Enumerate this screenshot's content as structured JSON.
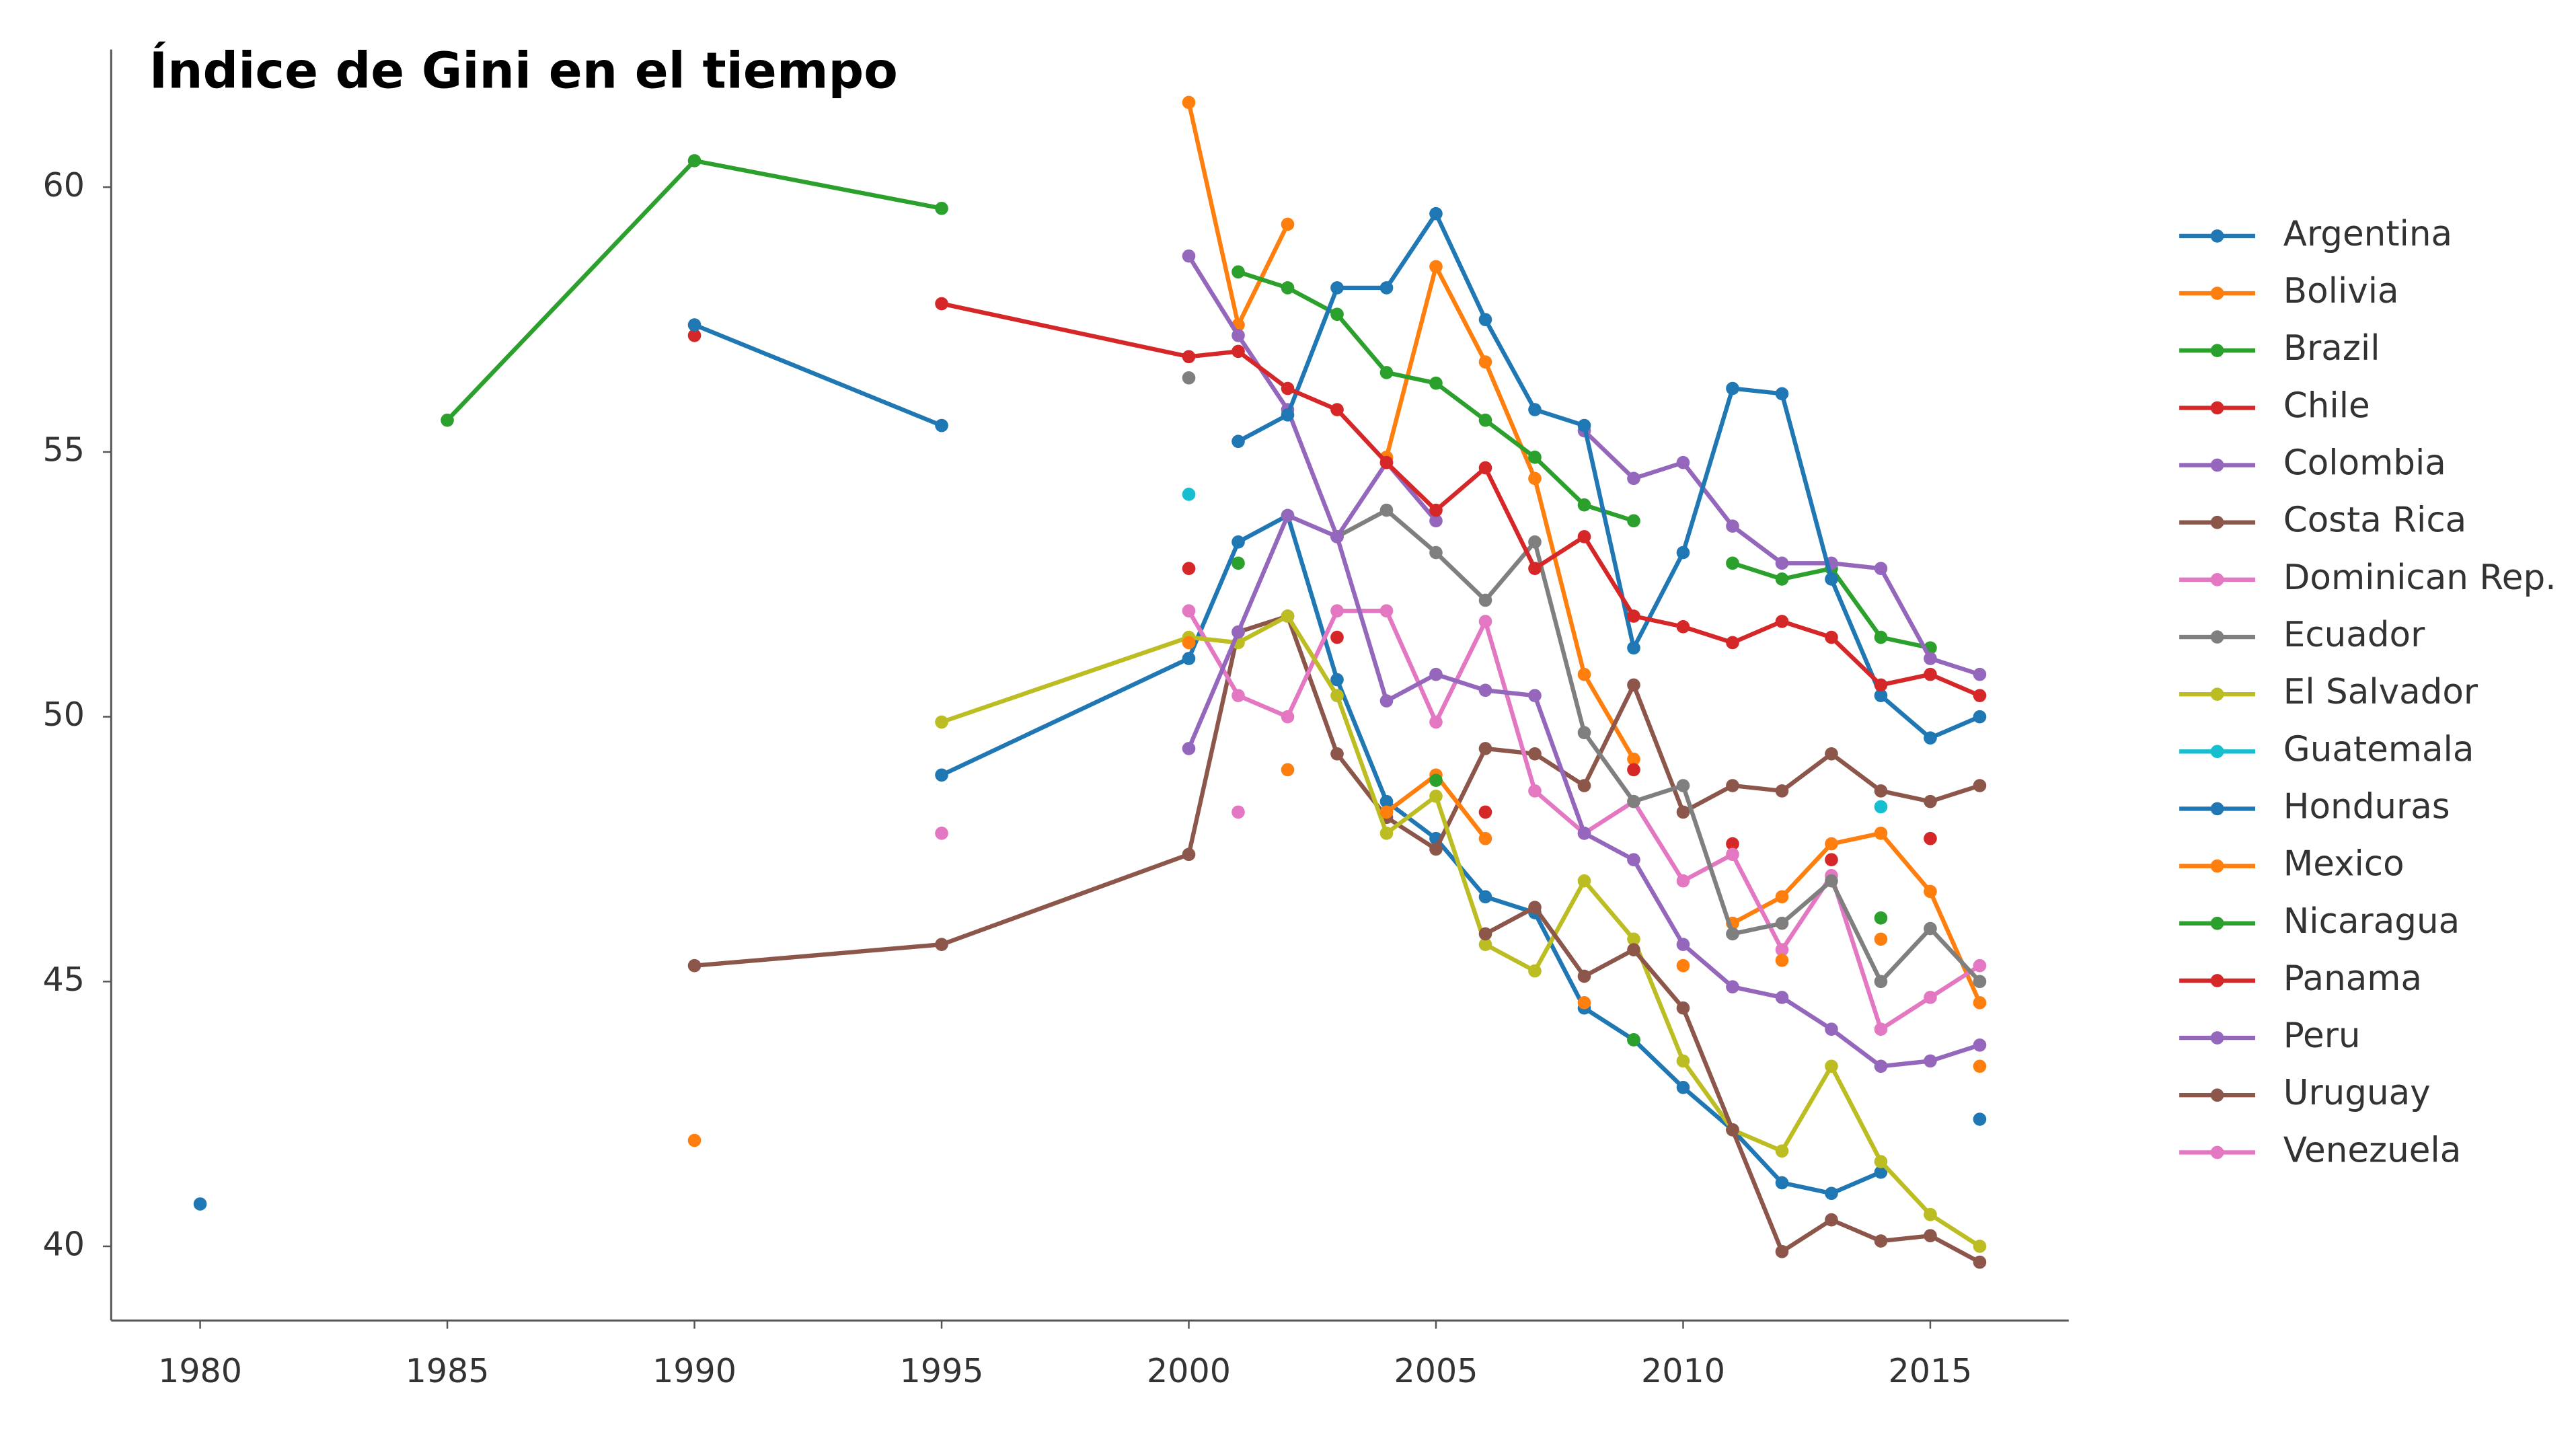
{
  "chart_data": {
    "type": "line",
    "title": "Índice de Gini en el tiempo",
    "x": [
      1980,
      1985,
      1990,
      1995,
      2000,
      2001,
      2002,
      2003,
      2004,
      2005,
      2006,
      2007,
      2008,
      2009,
      2010,
      2011,
      2012,
      2013,
      2014,
      2015,
      2016
    ],
    "xlim": [
      1978.2,
      2017.8
    ],
    "xticks": [
      1980,
      1985,
      1990,
      1995,
      2000,
      2005,
      2010,
      2015
    ],
    "ylim": [
      38.6,
      62.6
    ],
    "yticks": [
      40,
      45,
      50,
      55,
      60
    ],
    "legend": "right",
    "series": [
      {
        "name": "Argentina",
        "color": "#1f77b4",
        "values": [
          40.8,
          null,
          null,
          48.9,
          51.1,
          53.3,
          53.8,
          50.7,
          48.4,
          47.7,
          46.6,
          46.3,
          44.5,
          43.9,
          43.0,
          42.2,
          41.2,
          41.0,
          41.4,
          null,
          42.4
        ]
      },
      {
        "name": "Bolivia",
        "color": "#ff7f0e",
        "values": [
          null,
          null,
          42.0,
          null,
          61.6,
          57.4,
          59.3,
          null,
          54.9,
          58.5,
          56.7,
          54.5,
          50.8,
          49.2,
          null,
          46.1,
          46.6,
          47.6,
          47.8,
          46.7,
          44.6
        ]
      },
      {
        "name": "Brazil",
        "color": "#2ca02c",
        "values": [
          null,
          55.6,
          60.5,
          59.6,
          null,
          58.4,
          58.1,
          57.6,
          56.5,
          56.3,
          55.6,
          54.9,
          54.0,
          53.7,
          null,
          52.9,
          52.6,
          52.8,
          51.5,
          51.3,
          null
        ]
      },
      {
        "name": "Chile",
        "color": "#d62728",
        "values": [
          null,
          null,
          57.2,
          null,
          52.8,
          null,
          null,
          51.5,
          null,
          null,
          48.2,
          null,
          null,
          49.0,
          null,
          47.6,
          null,
          47.3,
          null,
          47.7,
          null
        ]
      },
      {
        "name": "Colombia",
        "color": "#9467bd",
        "values": [
          null,
          null,
          null,
          null,
          58.7,
          57.2,
          55.8,
          53.4,
          54.8,
          53.7,
          null,
          null,
          55.4,
          54.5,
          54.8,
          53.6,
          52.9,
          52.9,
          52.8,
          51.1,
          50.8
        ]
      },
      {
        "name": "Costa Rica",
        "color": "#8c564b",
        "values": [
          null,
          null,
          45.3,
          45.7,
          47.4,
          51.6,
          51.9,
          49.3,
          48.1,
          47.5,
          49.4,
          49.3,
          48.7,
          50.6,
          48.2,
          48.7,
          48.6,
          49.3,
          48.6,
          48.4,
          48.7
        ]
      },
      {
        "name": "Dominican Rep.",
        "color": "#e377c2",
        "values": [
          null,
          null,
          null,
          null,
          52.0,
          50.4,
          50.0,
          52.0,
          52.0,
          49.9,
          51.8,
          48.6,
          47.8,
          48.4,
          46.9,
          47.4,
          45.6,
          47.0,
          44.1,
          44.7,
          45.3
        ]
      },
      {
        "name": "Ecuador",
        "color": "#7f7f7f",
        "values": [
          null,
          null,
          null,
          null,
          56.4,
          null,
          null,
          53.4,
          53.9,
          53.1,
          52.2,
          53.3,
          49.7,
          48.4,
          48.7,
          45.9,
          46.1,
          46.9,
          45.0,
          46.0,
          45.0
        ]
      },
      {
        "name": "El Salvador",
        "color": "#bcbd22",
        "values": [
          null,
          null,
          null,
          49.9,
          51.5,
          51.4,
          51.9,
          50.4,
          47.8,
          48.5,
          45.7,
          45.2,
          46.9,
          45.8,
          43.5,
          42.2,
          41.8,
          43.4,
          41.6,
          40.6,
          40.0
        ]
      },
      {
        "name": "Guatemala",
        "color": "#17becf",
        "values": [
          null,
          null,
          null,
          null,
          54.2,
          null,
          null,
          null,
          null,
          null,
          null,
          null,
          null,
          null,
          null,
          null,
          null,
          null,
          48.3,
          null,
          null
        ]
      },
      {
        "name": "Honduras",
        "color": "#1f77b4",
        "values": [
          null,
          null,
          57.4,
          55.5,
          null,
          55.2,
          55.7,
          58.1,
          58.1,
          59.5,
          57.5,
          55.8,
          55.5,
          51.3,
          53.1,
          56.2,
          56.1,
          52.6,
          50.4,
          49.6,
          50.0
        ]
      },
      {
        "name": "Mexico",
        "color": "#ff7f0e",
        "values": [
          null,
          null,
          null,
          null,
          51.4,
          null,
          49.0,
          null,
          48.2,
          48.9,
          47.7,
          null,
          44.6,
          null,
          45.3,
          null,
          45.4,
          null,
          45.8,
          null,
          43.4
        ]
      },
      {
        "name": "Nicaragua",
        "color": "#2ca02c",
        "values": [
          null,
          null,
          null,
          null,
          null,
          52.9,
          null,
          null,
          null,
          48.8,
          null,
          null,
          null,
          43.9,
          null,
          null,
          null,
          null,
          46.2,
          null,
          null
        ]
      },
      {
        "name": "Panama",
        "color": "#d62728",
        "values": [
          null,
          null,
          null,
          57.8,
          56.8,
          56.9,
          56.2,
          55.8,
          54.8,
          53.9,
          54.7,
          52.8,
          53.4,
          51.9,
          51.7,
          51.4,
          51.8,
          51.5,
          50.6,
          50.8,
          50.4
        ]
      },
      {
        "name": "Peru",
        "color": "#9467bd",
        "values": [
          null,
          null,
          null,
          null,
          49.4,
          51.6,
          53.8,
          53.4,
          50.3,
          50.8,
          50.5,
          50.4,
          47.8,
          47.3,
          45.7,
          44.9,
          44.7,
          44.1,
          43.4,
          43.5,
          43.8
        ]
      },
      {
        "name": "Uruguay",
        "color": "#8c564b",
        "values": [
          null,
          null,
          null,
          null,
          null,
          null,
          null,
          null,
          null,
          null,
          45.9,
          46.4,
          45.1,
          45.6,
          44.5,
          42.2,
          39.9,
          40.5,
          40.1,
          40.2,
          39.7
        ]
      },
      {
        "name": "Venezuela",
        "color": "#e377c2",
        "values": [
          null,
          null,
          null,
          47.8,
          null,
          48.2,
          null,
          null,
          null,
          null,
          null,
          null,
          null,
          null,
          null,
          null,
          null,
          null,
          null,
          null,
          null
        ]
      }
    ]
  }
}
